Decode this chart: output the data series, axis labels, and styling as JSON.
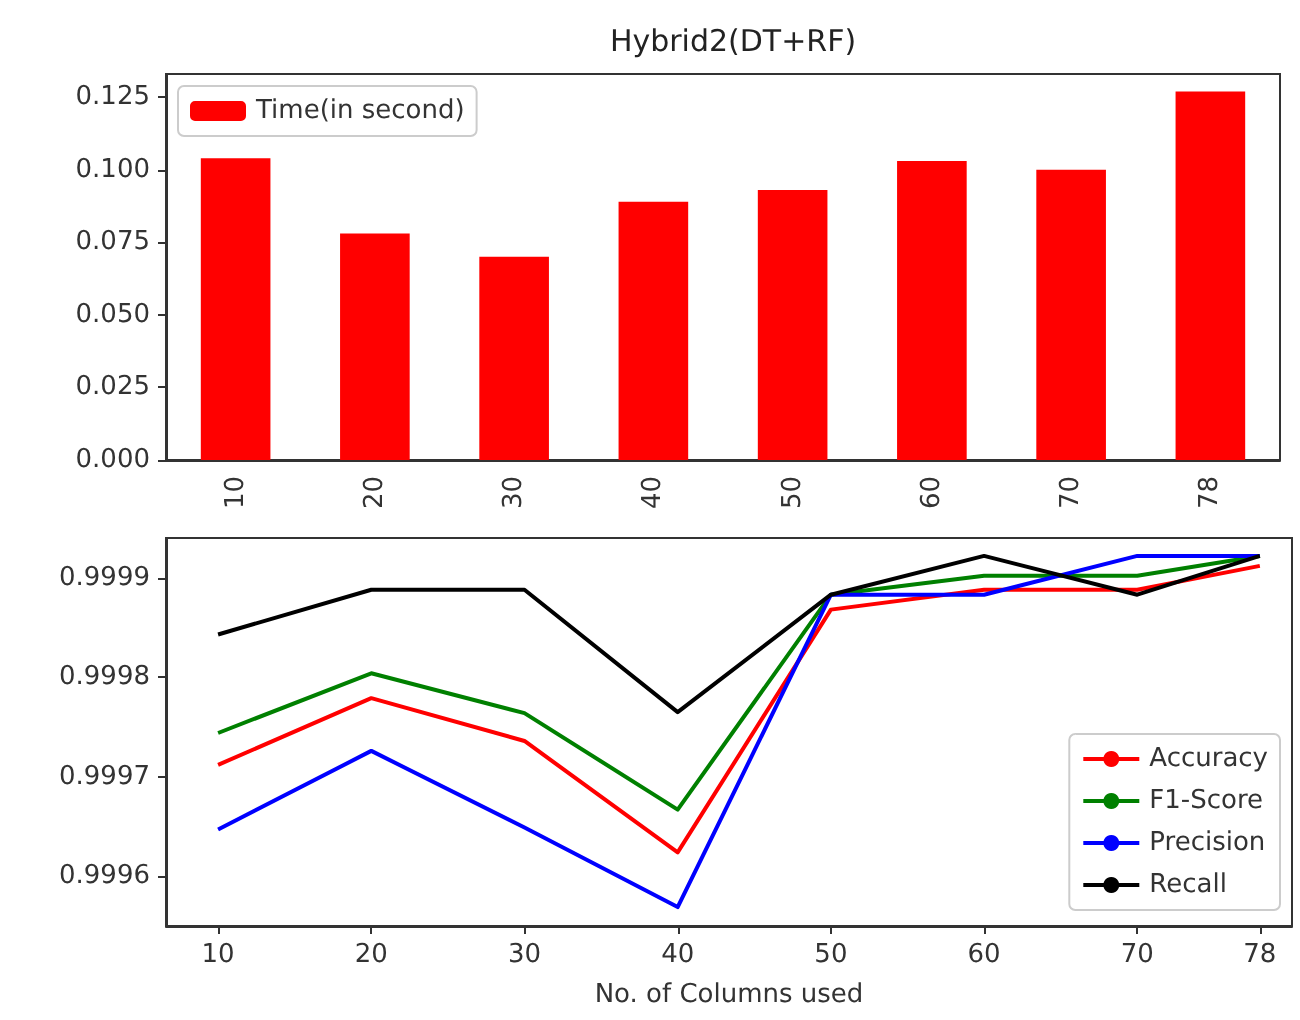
{
  "chart_data": [
    {
      "type": "bar",
      "title": "Hybrid2(DT+RF)",
      "categories": [
        "10",
        "20",
        "30",
        "40",
        "50",
        "60",
        "70",
        "78"
      ],
      "series": [
        {
          "name": "Time(in second)",
          "color": "#ff0000",
          "values": [
            0.104,
            0.078,
            0.07,
            0.089,
            0.093,
            0.103,
            0.1,
            0.127
          ]
        }
      ],
      "ylim": [
        0,
        0.133
      ],
      "yticks": [
        {
          "value": 0,
          "label": "0.000"
        },
        0.025,
        {
          "value": 0.05,
          "label": "0.050"
        },
        0.075,
        {
          "value": 0.1,
          "label": "0.100"
        },
        0.125
      ],
      "legend": "top left",
      "grid": false
    },
    {
      "type": "line",
      "xlabel": "No. of Columns used",
      "x": [
        10,
        20,
        30,
        40,
        50,
        60,
        70,
        78
      ],
      "series": [
        {
          "name": "Accuracy",
          "color": "#ff0000",
          "values": [
            0.999712,
            0.999779,
            0.999736,
            0.999624,
            0.999868,
            0.999888,
            0.999888,
            0.999912
          ]
        },
        {
          "name": "F1-Score",
          "color": "#008000",
          "values": [
            0.999744,
            0.999804,
            0.999764,
            0.999667,
            0.999883,
            0.999902,
            0.999902,
            0.999922
          ]
        },
        {
          "name": "Precision",
          "color": "#0000ff",
          "values": [
            0.999647,
            0.999726,
            0.999649,
            0.999569,
            0.999883,
            0.999883,
            0.999922,
            0.999922
          ]
        },
        {
          "name": "Recall",
          "color": "#000000",
          "values": [
            0.999843,
            0.999888,
            0.999888,
            0.999765,
            0.999883,
            0.999922,
            0.999883,
            0.999922
          ]
        }
      ],
      "xlim": [
        6.6,
        80.1
      ],
      "xticks": [
        10,
        20,
        30,
        40,
        50,
        60,
        70,
        78
      ],
      "ylim": [
        0.99955,
        0.99994
      ],
      "yticks": [
        0.9996,
        0.9997,
        0.9998,
        0.9999
      ],
      "legend": "bottom right",
      "grid": false,
      "marker": "none",
      "line_style": "solid"
    }
  ]
}
